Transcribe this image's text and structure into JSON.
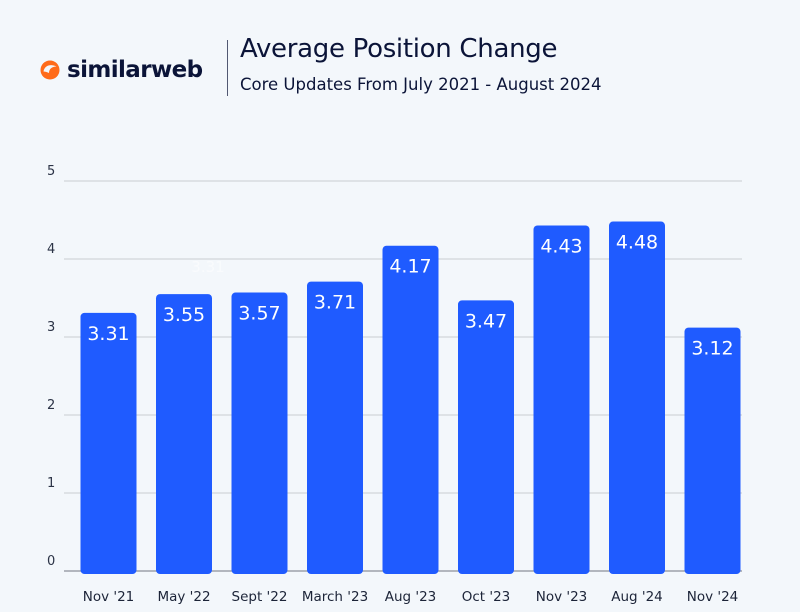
{
  "brand": {
    "name": "similarweb",
    "colors": {
      "accent": "#ff6b1a",
      "text": "#0b1438",
      "bar": "#1f5bff",
      "grid": "#c9ccd2"
    }
  },
  "chart_data": {
    "type": "bar",
    "title": "Average Position Change",
    "subtitle": "Core Updates From July 2021 - August 2024",
    "categories": [
      "Nov '21",
      "May '22",
      "Sept '22",
      "March '23",
      "Aug '23",
      "Oct '23",
      "Nov '23",
      "Aug '24",
      "Nov '24"
    ],
    "values": [
      3.31,
      3.55,
      3.57,
      3.71,
      4.17,
      3.47,
      4.43,
      4.48,
      3.12
    ],
    "data_labels": [
      "3.31",
      "3.55",
      "3.57",
      "3.71",
      "4.17",
      "3.47",
      "4.43",
      "4.48",
      "3.12"
    ],
    "ghost_label": "3.31",
    "y_ticks": [
      "0",
      "1",
      "2",
      "3",
      "4",
      "5"
    ],
    "ylim": [
      0,
      5
    ],
    "grid": true,
    "legend": "none"
  }
}
